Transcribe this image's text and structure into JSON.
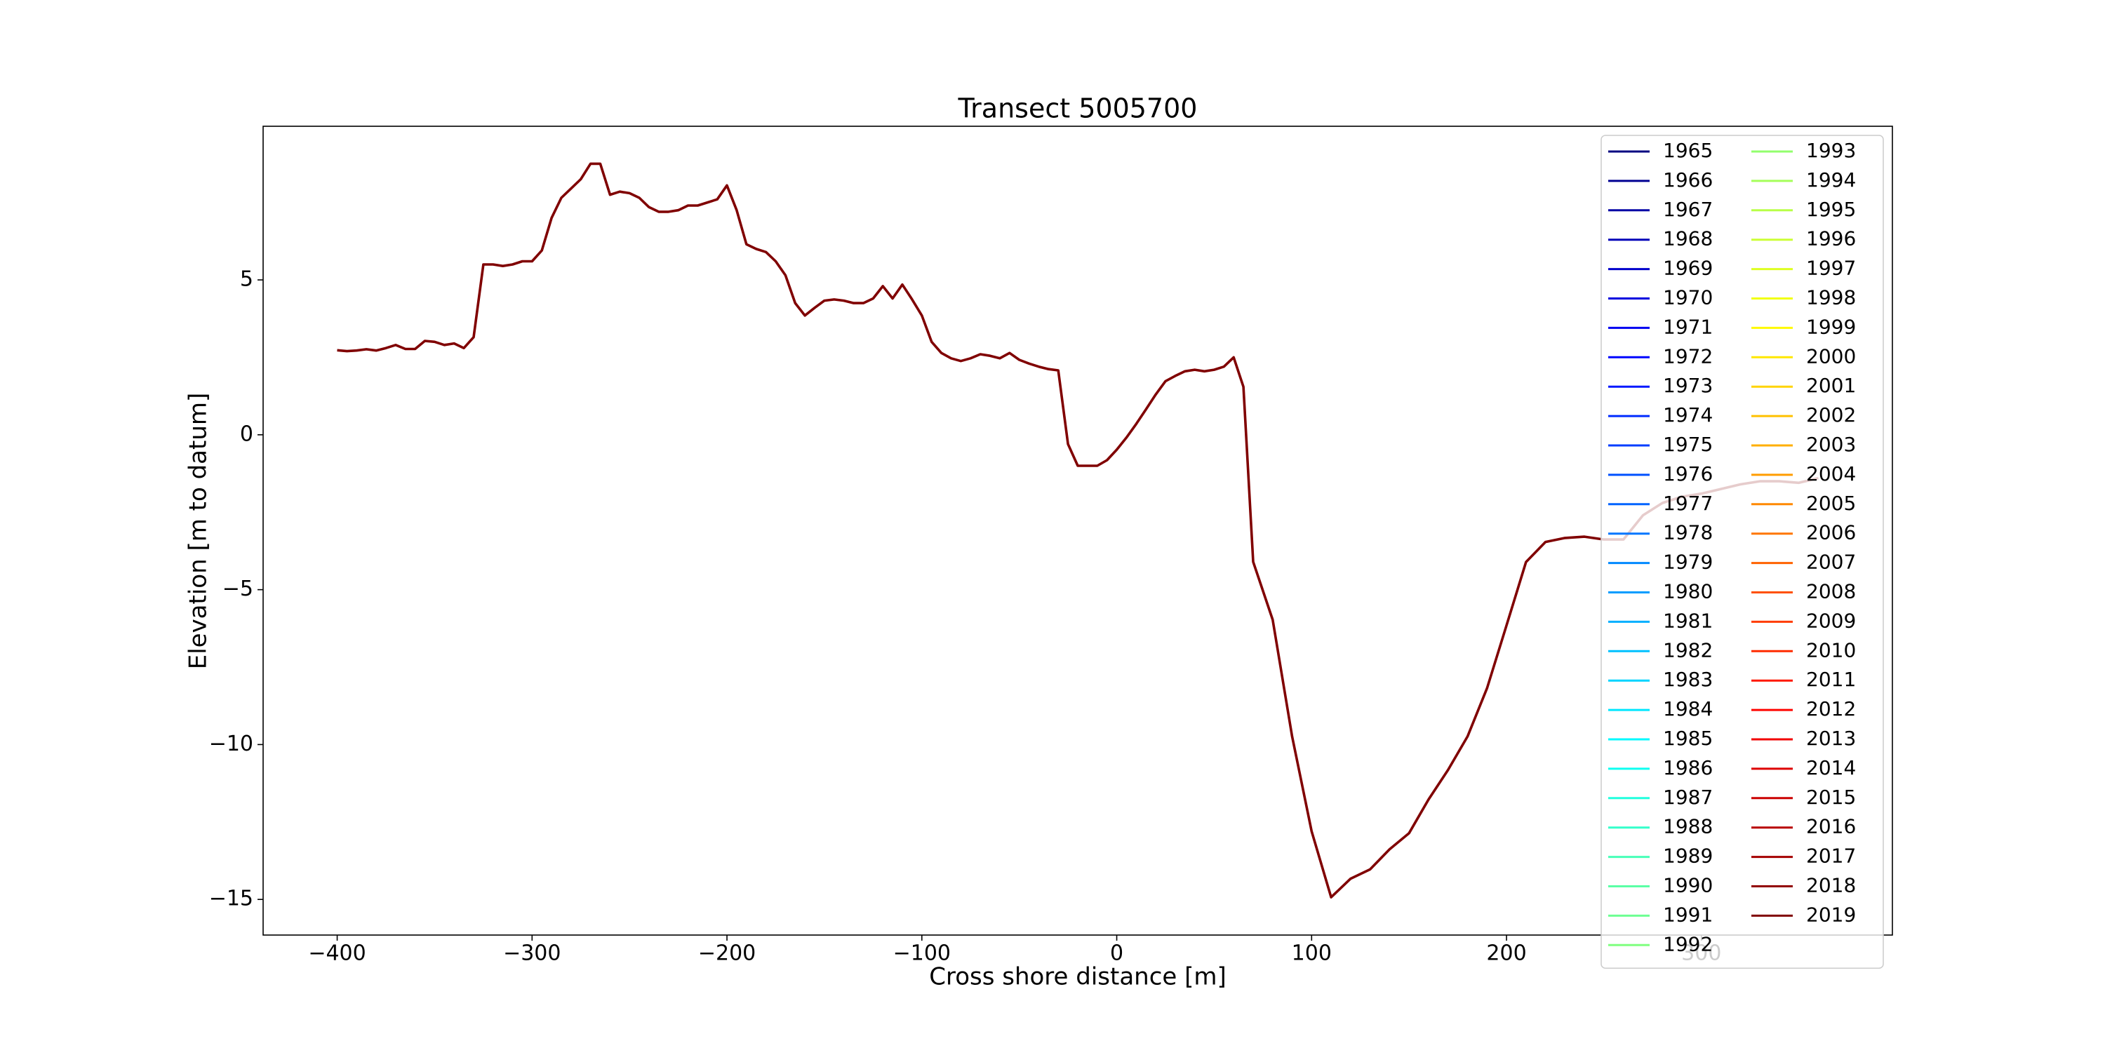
{
  "chart_data": {
    "type": "line",
    "title": "Transect 5005700",
    "xlabel": "Cross shore distance [m]",
    "ylabel": "Elevation [m to datum]",
    "xlim": [
      -438,
      398
    ],
    "ylim": [
      -16.15,
      9.96
    ],
    "xticks": [
      {
        "value": -400,
        "label": "−400"
      },
      {
        "value": -300,
        "label": "−300"
      },
      {
        "value": -200,
        "label": "−200"
      },
      {
        "value": -100,
        "label": "−100"
      },
      0,
      100,
      200,
      300
    ],
    "yticks": [
      {
        "value": -15,
        "label": "−15"
      },
      {
        "value": -10,
        "label": "−10"
      },
      {
        "value": -5,
        "label": "−5"
      },
      0,
      5
    ],
    "grid": false,
    "legend": "upper right",
    "legend_columns": 2,
    "x": [
      -400,
      -395,
      -390,
      -385,
      -380,
      -375,
      -370,
      -365,
      -360,
      -355,
      -350,
      -345,
      -340,
      -335,
      -330,
      -325,
      -320,
      -315,
      -310,
      -305,
      -300,
      -295,
      -290,
      -285,
      -280,
      -275,
      -270,
      -265,
      -260,
      -255,
      -250,
      -245,
      -240,
      -235,
      -230,
      -225,
      -220,
      -215,
      -210,
      -205,
      -200,
      -195,
      -190,
      -185,
      -180,
      -175,
      -170,
      -165,
      -160,
      -155,
      -150,
      -145,
      -140,
      -135,
      -130,
      -125,
      -120,
      -115,
      -110,
      -105,
      -100,
      -95,
      -90,
      -85,
      -80,
      -75,
      -70,
      -65,
      -60,
      -55,
      -50,
      -45,
      -40,
      -35,
      -30,
      -25,
      -20,
      -15,
      -10,
      -5,
      0,
      5,
      10,
      15,
      20,
      25,
      30,
      35,
      40,
      45,
      50,
      55,
      60,
      65,
      70,
      80,
      90,
      100,
      110,
      120,
      130,
      140,
      150,
      160,
      170,
      180,
      190,
      200,
      210,
      220,
      230,
      240,
      250,
      260,
      270,
      280,
      290,
      300,
      310,
      320,
      330,
      340,
      350,
      360
    ],
    "series": [
      {
        "name": "1965",
        "color": "#000080"
      },
      {
        "name": "1966",
        "color": "#000092"
      },
      {
        "name": "1967",
        "color": "#0000a5"
      },
      {
        "name": "1968",
        "color": "#0000b8"
      },
      {
        "name": "1969",
        "color": "#0000cb"
      },
      {
        "name": "1970",
        "color": "#0000de"
      },
      {
        "name": "1971",
        "color": "#0000f1"
      },
      {
        "name": "1972",
        "color": "#0005ff"
      },
      {
        "name": "1973",
        "color": "#0018ff"
      },
      {
        "name": "1974",
        "color": "#002bff"
      },
      {
        "name": "1975",
        "color": "#003dff"
      },
      {
        "name": "1976",
        "color": "#0050ff"
      },
      {
        "name": "1977",
        "color": "#0063ff"
      },
      {
        "name": "1978",
        "color": "#0076ff"
      },
      {
        "name": "1979",
        "color": "#0089ff"
      },
      {
        "name": "1980",
        "color": "#009cff"
      },
      {
        "name": "1981",
        "color": "#00afff"
      },
      {
        "name": "1982",
        "color": "#00c1ff"
      },
      {
        "name": "1983",
        "color": "#00d4ff"
      },
      {
        "name": "1984",
        "color": "#00e7ff"
      },
      {
        "name": "1985",
        "color": "#00faff"
      },
      {
        "name": "1986",
        "color": "#0efff1"
      },
      {
        "name": "1987",
        "color": "#21ffde"
      },
      {
        "name": "1988",
        "color": "#34ffcb"
      },
      {
        "name": "1989",
        "color": "#47ffb8"
      },
      {
        "name": "1990",
        "color": "#5affa5"
      },
      {
        "name": "1991",
        "color": "#6dff92"
      },
      {
        "name": "1992",
        "color": "#80ff80"
      },
      {
        "name": "1993",
        "color": "#92ff6d"
      },
      {
        "name": "1994",
        "color": "#a5ff5a"
      },
      {
        "name": "1995",
        "color": "#b8ff47"
      },
      {
        "name": "1996",
        "color": "#cbff34"
      },
      {
        "name": "1997",
        "color": "#deff21"
      },
      {
        "name": "1998",
        "color": "#f1ff0e"
      },
      {
        "name": "1999",
        "color": "#fffa00"
      },
      {
        "name": "2000",
        "color": "#ffe700"
      },
      {
        "name": "2001",
        "color": "#ffd400"
      },
      {
        "name": "2002",
        "color": "#ffc100"
      },
      {
        "name": "2003",
        "color": "#ffaf00"
      },
      {
        "name": "2004",
        "color": "#ff9c00"
      },
      {
        "name": "2005",
        "color": "#ff8900"
      },
      {
        "name": "2006",
        "color": "#ff7600"
      },
      {
        "name": "2007",
        "color": "#ff6300"
      },
      {
        "name": "2008",
        "color": "#ff5000"
      },
      {
        "name": "2009",
        "color": "#ff3d00"
      },
      {
        "name": "2010",
        "color": "#ff2b00"
      },
      {
        "name": "2011",
        "color": "#ff1800"
      },
      {
        "name": "2012",
        "color": "#ff0500"
      },
      {
        "name": "2013",
        "color": "#f10000"
      },
      {
        "name": "2014",
        "color": "#de0000"
      },
      {
        "name": "2015",
        "color": "#cb0000"
      },
      {
        "name": "2016",
        "color": "#b80000"
      },
      {
        "name": "2017",
        "color": "#a50000"
      },
      {
        "name": "2018",
        "color": "#920000"
      },
      {
        "name": "2019",
        "color": "#800000",
        "values": [
          2.73,
          2.7,
          2.72,
          2.76,
          2.72,
          2.8,
          2.9,
          2.77,
          2.77,
          3.03,
          3.0,
          2.9,
          2.95,
          2.8,
          3.15,
          5.5,
          5.5,
          5.45,
          5.5,
          5.6,
          5.6,
          5.95,
          7.0,
          7.65,
          7.95,
          8.25,
          8.75,
          8.75,
          7.75,
          7.85,
          7.8,
          7.65,
          7.35,
          7.2,
          7.2,
          7.25,
          7.4,
          7.4,
          7.5,
          7.6,
          8.05,
          7.25,
          6.15,
          6.0,
          5.9,
          5.6,
          5.15,
          4.25,
          3.85,
          4.1,
          4.33,
          4.37,
          4.33,
          4.25,
          4.25,
          4.4,
          4.8,
          4.4,
          4.85,
          4.37,
          3.85,
          3.0,
          2.64,
          2.47,
          2.38,
          2.47,
          2.6,
          2.55,
          2.47,
          2.64,
          2.42,
          2.3,
          2.2,
          2.12,
          2.08,
          -0.3,
          -1.0,
          -1.0,
          -1.0,
          -0.82,
          -0.48,
          -0.09,
          0.35,
          0.82,
          1.3,
          1.73,
          1.9,
          2.05,
          2.1,
          2.05,
          2.1,
          2.2,
          2.5,
          1.55,
          -4.1,
          -5.97,
          -9.74,
          -12.8,
          -14.93,
          -14.33,
          -14.03,
          -13.38,
          -12.86,
          -11.77,
          -10.82,
          -9.74,
          -8.18,
          -6.15,
          -4.11,
          -3.46,
          -3.33,
          -3.29,
          -3.38,
          -3.38,
          -2.6,
          -2.2,
          -2.0,
          -1.9,
          -1.75,
          -1.6,
          -1.5,
          -1.5,
          -1.55,
          -1.4
        ]
      }
    ]
  }
}
